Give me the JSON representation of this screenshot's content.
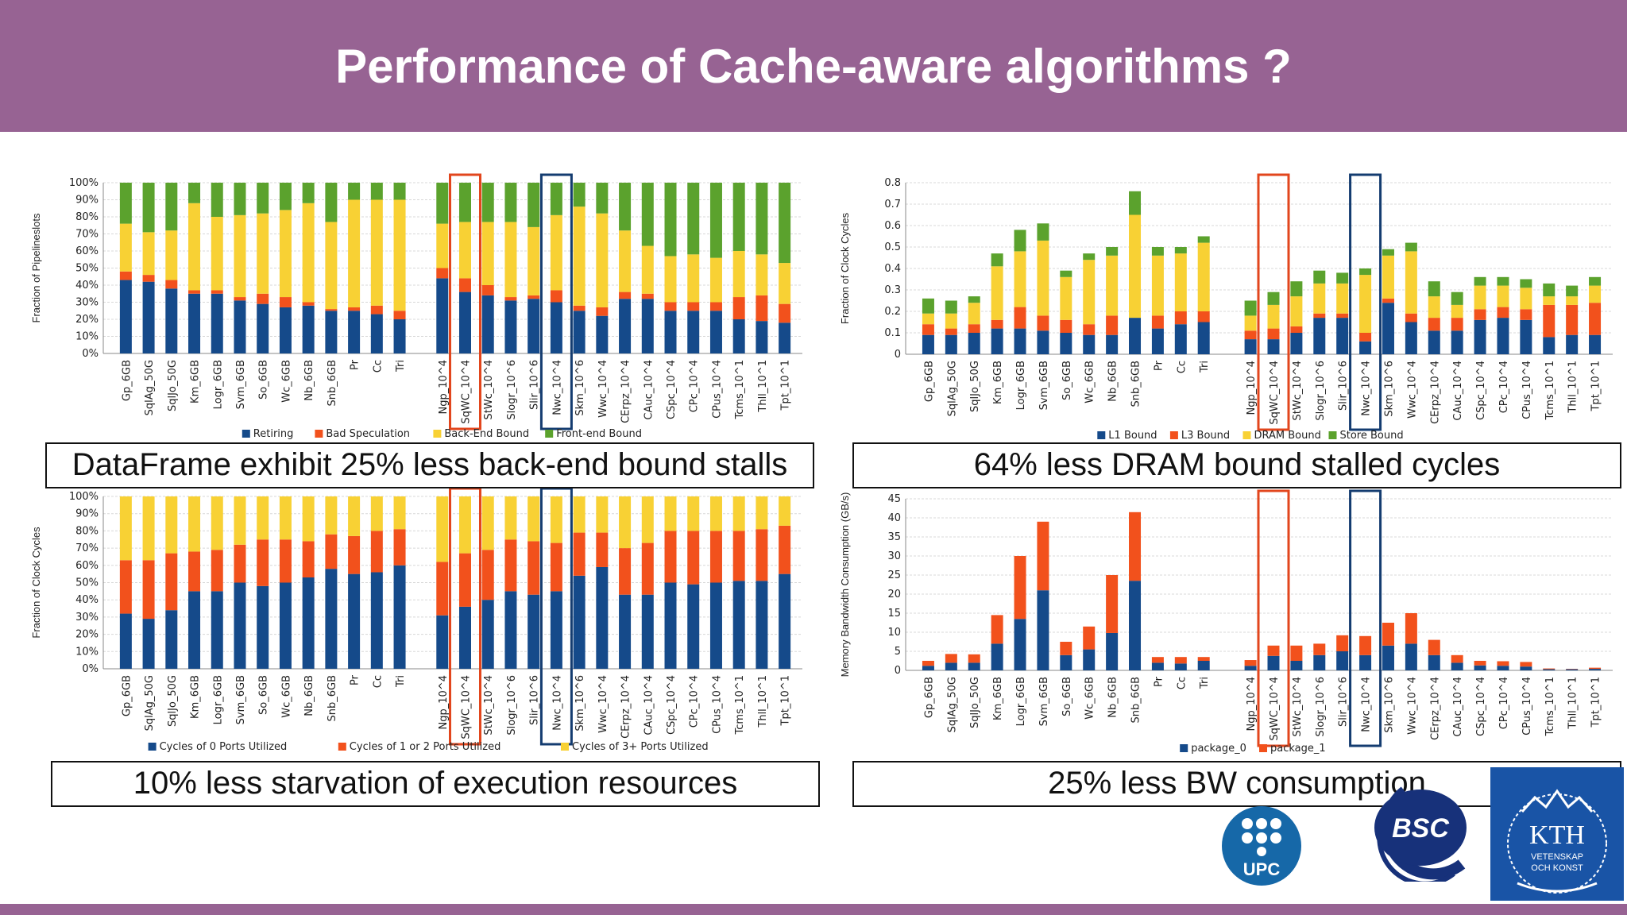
{
  "slide": {
    "title": "Performance of Cache-aware algorithms ?",
    "captions": [
      "DataFrame exhibit 25% less back-end bound stalls",
      "64% less DRAM bound stalled cycles",
      "10% less starvation of execution resources",
      "25% less BW consumption"
    ]
  },
  "logos": {
    "upc": "UPC",
    "bsc": "BSC",
    "kth": "KTH",
    "kth_line1": "VETENSKAP",
    "kth_line2": "OCH KONST"
  },
  "colors": {
    "header": "#976393",
    "navy": "#154a8a",
    "orange": "#f2511c",
    "yellow": "#f8d134",
    "green": "#5ba22d",
    "highlight_red": "#e2461d",
    "highlight_navy": "#143c70"
  },
  "chart_data": [
    {
      "type": "bar",
      "stacked": true,
      "ylabel": "Fraction of Pipelineslots",
      "ylim": [
        0,
        100
      ],
      "yticks": [
        "0%",
        "10%",
        "20%",
        "30%",
        "40%",
        "50%",
        "60%",
        "70%",
        "80%",
        "90%",
        "100%"
      ],
      "groups": [
        [
          "Gp_6GB",
          "SqlAg_50G",
          "SqlJo_50G",
          "Km_6GB",
          "Logr_6GB",
          "Svm_6GB",
          "So_6GB",
          "Wc_6GB",
          "Nb_6GB",
          "Snb_6GB",
          "Pr",
          "Cc",
          "Tri"
        ],
        [
          "Ngp_10^4",
          "SqWC_10^4",
          "StWc_10^4",
          "Slogr_10^6",
          "Slir_10^6",
          "Nwc_10^4",
          "Skm_10^6",
          "Wwc_10^4",
          "CErpz_10^4",
          "CAuc_10^4",
          "CSpc_10^4",
          "CPc_10^4",
          "CPus_10^4",
          "Tcms_10^1",
          "Thll_10^1",
          "Tpt_10^1"
        ]
      ],
      "series": [
        {
          "name": "Retiring",
          "values": [
            43,
            42,
            38,
            35,
            35,
            31,
            29,
            27,
            28,
            25,
            25,
            23,
            20,
            44,
            36,
            34,
            31,
            32,
            30,
            25,
            22,
            32,
            32,
            25,
            25,
            25,
            20,
            19,
            18
          ]
        },
        {
          "name": "Bad Speculation",
          "values": [
            5,
            4,
            5,
            2,
            2,
            2,
            6,
            6,
            2,
            1,
            2,
            5,
            5,
            6,
            8,
            6,
            2,
            2,
            7,
            3,
            5,
            4,
            3,
            5,
            5,
            5,
            13,
            15,
            11
          ]
        },
        {
          "name": "Back-End Bound",
          "values": [
            28,
            25,
            29,
            51,
            43,
            48,
            47,
            51,
            58,
            51,
            63,
            62,
            65,
            26,
            33,
            37,
            44,
            40,
            44,
            58,
            55,
            36,
            28,
            27,
            28,
            26,
            27,
            24,
            24
          ]
        },
        {
          "name": "Front-end Bound",
          "values": [
            24,
            29,
            28,
            12,
            20,
            19,
            18,
            16,
            12,
            23,
            10,
            10,
            10,
            24,
            23,
            23,
            23,
            26,
            19,
            14,
            18,
            28,
            37,
            43,
            42,
            44,
            40,
            42,
            47
          ]
        }
      ],
      "highlight": [
        "SqWC_10^4",
        "Nwc_10^4"
      ]
    },
    {
      "type": "bar",
      "stacked": true,
      "ylabel": "Fraction of Clock Cycles",
      "ylim": [
        0,
        0.8
      ],
      "yticks": [
        "0",
        "0.1",
        "0.2",
        "0.3",
        "0.4",
        "0.5",
        "0.6",
        "0.7",
        "0.8"
      ],
      "groups": [
        [
          "Gp_6GB",
          "SqlAg_50G",
          "SqlJo_50G",
          "Km_6GB",
          "Logr_6GB",
          "Svm_6GB",
          "So_6GB",
          "Wc_6GB",
          "Nb_6GB",
          "Snb_6GB",
          "Pr",
          "Cc",
          "Tri"
        ],
        [
          "Ngp_10^4",
          "SqWC_10^4",
          "StWc_10^4",
          "Slogr_10^6",
          "Slir_10^6",
          "Nwc_10^4",
          "Skm_10^6",
          "Wwc_10^4",
          "CErpz_10^4",
          "CAuc_10^4",
          "CSpc_10^4",
          "CPc_10^4",
          "CPus_10^4",
          "Tcms_10^1",
          "Thll_10^1",
          "Tpt_10^1"
        ]
      ],
      "series": [
        {
          "name": "L1 Bound",
          "values": [
            0.09,
            0.09,
            0.1,
            0.12,
            0.12,
            0.11,
            0.1,
            0.09,
            0.09,
            0.17,
            0.12,
            0.14,
            0.15,
            0.07,
            0.07,
            0.1,
            0.17,
            0.17,
            0.06,
            0.24,
            0.15,
            0.11,
            0.11,
            0.16,
            0.17,
            0.16,
            0.08,
            0.09,
            0.09
          ]
        },
        {
          "name": "L3 Bound",
          "values": [
            0.05,
            0.03,
            0.04,
            0.04,
            0.1,
            0.07,
            0.06,
            0.05,
            0.09,
            0.0,
            0.06,
            0.06,
            0.05,
            0.04,
            0.05,
            0.03,
            0.02,
            0.02,
            0.04,
            0.02,
            0.04,
            0.06,
            0.06,
            0.05,
            0.05,
            0.05,
            0.15,
            0.14,
            0.15
          ]
        },
        {
          "name": "DRAM Bound",
          "values": [
            0.05,
            0.07,
            0.1,
            0.25,
            0.26,
            0.35,
            0.2,
            0.3,
            0.28,
            0.48,
            0.28,
            0.27,
            0.32,
            0.07,
            0.11,
            0.14,
            0.14,
            0.14,
            0.27,
            0.2,
            0.29,
            0.1,
            0.06,
            0.11,
            0.1,
            0.1,
            0.04,
            0.04,
            0.08
          ]
        },
        {
          "name": "Store Bound",
          "values": [
            0.07,
            0.06,
            0.03,
            0.06,
            0.1,
            0.08,
            0.03,
            0.03,
            0.04,
            0.11,
            0.04,
            0.03,
            0.03,
            0.07,
            0.06,
            0.07,
            0.06,
            0.05,
            0.03,
            0.03,
            0.04,
            0.07,
            0.06,
            0.04,
            0.04,
            0.04,
            0.06,
            0.05,
            0.04
          ]
        }
      ],
      "highlight": [
        "SqWC_10^4",
        "Nwc_10^4"
      ]
    },
    {
      "type": "bar",
      "stacked": true,
      "ylabel": "Fraction of Clock Cycles",
      "ylim": [
        0,
        100
      ],
      "yticks": [
        "0%",
        "10%",
        "20%",
        "30%",
        "40%",
        "50%",
        "60%",
        "70%",
        "80%",
        "90%",
        "100%"
      ],
      "groups": [
        [
          "Gp_6GB",
          "SqlAg_50G",
          "SqlJo_50G",
          "Km_6GB",
          "Logr_6GB",
          "Svm_6GB",
          "So_6GB",
          "Wc_6GB",
          "Nb_6GB",
          "Snb_6GB",
          "Pr",
          "Cc",
          "Tri"
        ],
        [
          "Ngp_10^4",
          "SqWC_10^4",
          "StWc_10^4",
          "Slogr_10^6",
          "Slir_10^6",
          "Nwc_10^4",
          "Skm_10^6",
          "Wwc_10^4",
          "CErpz_10^4",
          "CAuc_10^4",
          "CSpc_10^4",
          "CPc_10^4",
          "CPus_10^4",
          "Tcms_10^1",
          "Thll_10^1",
          "Tpt_10^1"
        ]
      ],
      "series": [
        {
          "name": "Cycles of 0 Ports Utilized",
          "values": [
            32,
            29,
            34,
            45,
            45,
            50,
            48,
            50,
            53,
            58,
            55,
            56,
            60,
            31,
            36,
            40,
            45,
            43,
            45,
            54,
            59,
            43,
            43,
            50,
            49,
            50,
            51,
            51,
            55
          ]
        },
        {
          "name": "Cycles of 1 or 2 Ports Utilized",
          "values": [
            31,
            34,
            33,
            23,
            24,
            22,
            27,
            25,
            21,
            20,
            22,
            24,
            21,
            31,
            31,
            29,
            30,
            31,
            28,
            25,
            20,
            27,
            30,
            30,
            31,
            30,
            29,
            30,
            28
          ]
        },
        {
          "name": "Cycles of 3+ Ports Utilized",
          "values": [
            37,
            37,
            33,
            32,
            31,
            28,
            25,
            25,
            26,
            22,
            23,
            20,
            19,
            38,
            33,
            31,
            25,
            26,
            27,
            21,
            21,
            30,
            27,
            20,
            20,
            20,
            20,
            19,
            17
          ]
        }
      ],
      "highlight": [
        "SqWC_10^4",
        "Nwc_10^4"
      ]
    },
    {
      "type": "bar",
      "stacked": true,
      "ylabel": "Memory Bandwidth Consumption (GB/s)",
      "ylim": [
        0,
        45
      ],
      "yticks": [
        "0",
        "5",
        "10",
        "15",
        "20",
        "25",
        "30",
        "35",
        "40",
        "45"
      ],
      "groups": [
        [
          "Gp_6GB",
          "SqlAg_50G",
          "SqlJo_50G",
          "Km_6GB",
          "Logr_6GB",
          "Svm_6GB",
          "So_6GB",
          "Wc_6GB",
          "Nb_6GB",
          "Snb_6GB",
          "Pr",
          "Cc",
          "Tri"
        ],
        [
          "Ngp_10^4",
          "SqWC_10^4",
          "StWc_10^4",
          "Slogr_10^6",
          "Slir_10^6",
          "Nwc_10^4",
          "Skm_10^6",
          "Wwc_10^4",
          "CErpz_10^4",
          "CAuc_10^4",
          "CSpc_10^4",
          "CPc_10^4",
          "CPus_10^4",
          "Tcms_10^1",
          "Thll_10^1",
          "Tpt_10^1"
        ]
      ],
      "series": [
        {
          "name": "package_0",
          "values": [
            1.2,
            2,
            2,
            7,
            13.5,
            21,
            4,
            5.5,
            9.8,
            23.5,
            2,
            1.8,
            2.5,
            1.2,
            3.8,
            2.5,
            4,
            5,
            4,
            6.5,
            7,
            4,
            2,
            1.3,
            1.2,
            1,
            0.3,
            0.3,
            0.4
          ]
        },
        {
          "name": "package_1",
          "values": [
            1.3,
            2.3,
            2.2,
            7.5,
            16.5,
            18,
            3.5,
            6,
            15.2,
            18,
            1.5,
            1.7,
            1,
            1.5,
            2.7,
            4,
            3,
            4.2,
            5,
            6,
            8,
            4,
            2,
            1.2,
            1.2,
            1.2,
            0.2,
            0.1,
            0.3
          ]
        }
      ],
      "highlight": [
        "SqWC_10^4",
        "Nwc_10^4"
      ]
    }
  ]
}
